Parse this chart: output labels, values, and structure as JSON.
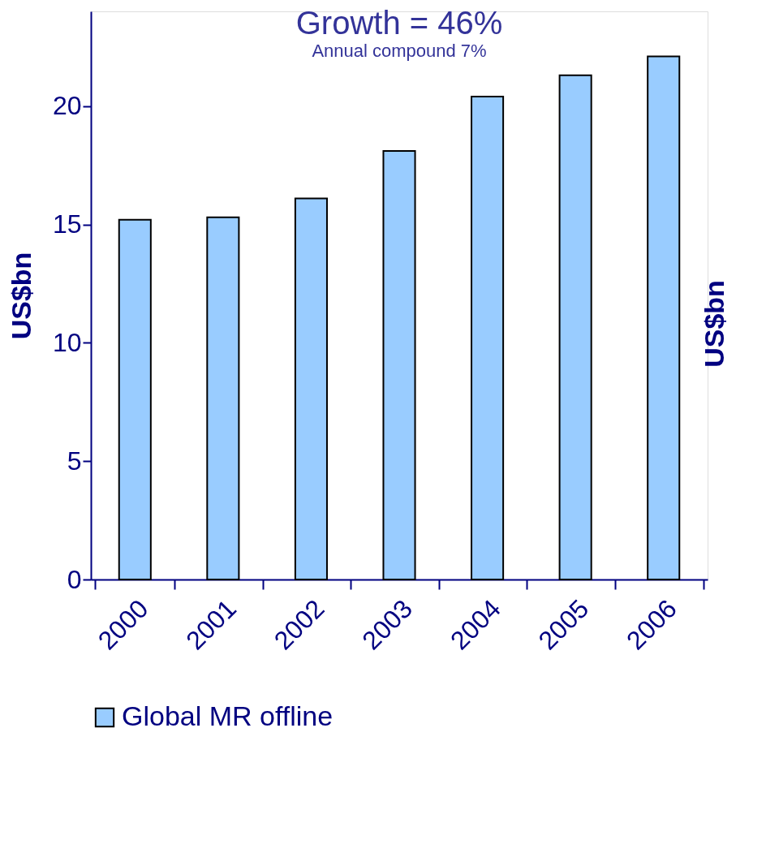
{
  "chart_data": {
    "type": "bar",
    "title": "Growth = 46%",
    "subtitle": "Annual compound 7%",
    "ylabel": "US$bn",
    "y2label": "US$bn",
    "categories": [
      "2000",
      "2001",
      "2002",
      "2003",
      "2004",
      "2005",
      "2006"
    ],
    "series": [
      {
        "name": "Global MR offline",
        "color": "#99ccff",
        "values": [
          15.2,
          15.3,
          16.1,
          18.1,
          20.4,
          21.3,
          22.1
        ]
      }
    ],
    "ylim": [
      0,
      24
    ],
    "yticks": [
      0,
      5,
      10,
      15,
      20
    ],
    "grid": false,
    "legend": "bottom"
  }
}
